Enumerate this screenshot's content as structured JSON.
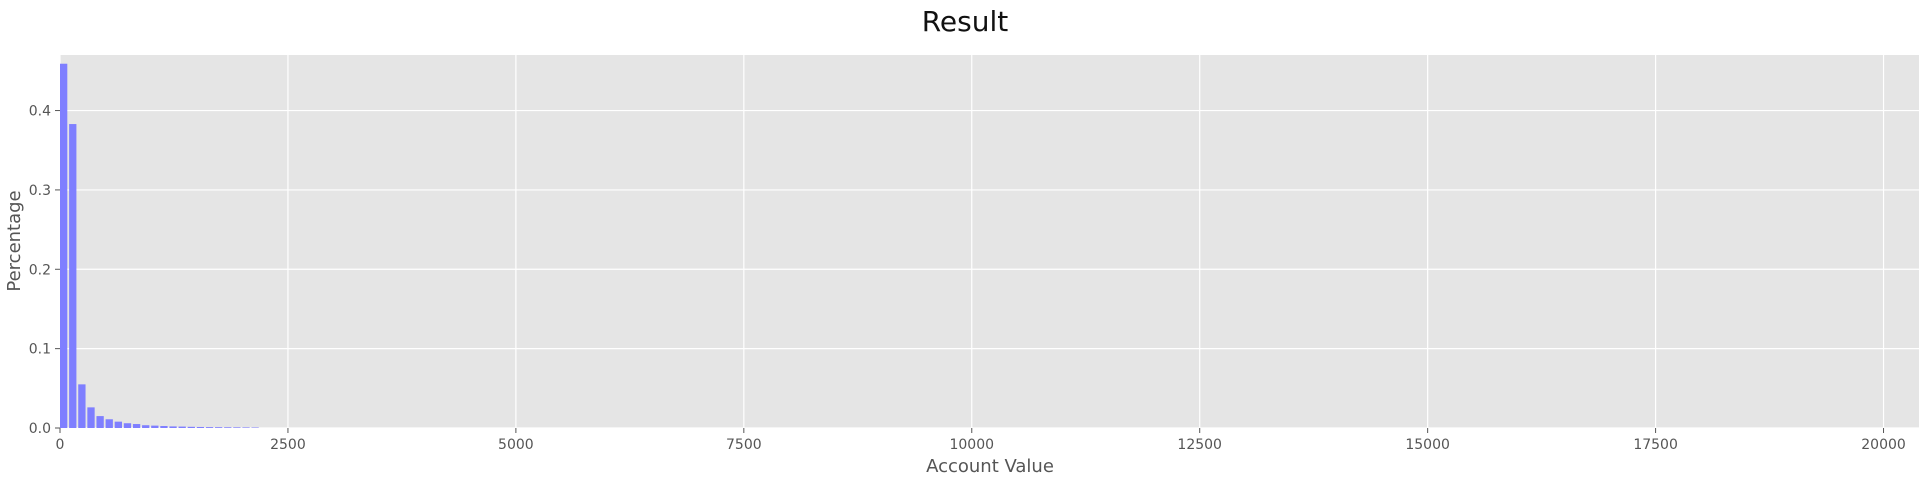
{
  "chart_data": {
    "type": "bar",
    "title": "Result",
    "xlabel": "Account Value",
    "ylabel": "Percentage",
    "xlim": [
      0,
      20400
    ],
    "ylim": [
      0,
      0.47
    ],
    "grid": true,
    "bar_width": 80,
    "x_ticks": [
      {
        "value": 0,
        "label": "0"
      },
      {
        "value": 2500,
        "label": "2500"
      },
      {
        "value": 5000,
        "label": "5000"
      },
      {
        "value": 7500,
        "label": "7500"
      },
      {
        "value": 10000,
        "label": "10000"
      },
      {
        "value": 12500,
        "label": "12500"
      },
      {
        "value": 15000,
        "label": "15000"
      },
      {
        "value": 17500,
        "label": "17500"
      },
      {
        "value": 20000,
        "label": "20000"
      }
    ],
    "y_ticks": [
      {
        "value": 0.0,
        "label": "0.0"
      },
      {
        "value": 0.1,
        "label": "0.1"
      },
      {
        "value": 0.2,
        "label": "0.2"
      },
      {
        "value": 0.3,
        "label": "0.3"
      },
      {
        "value": 0.4,
        "label": "0.4"
      }
    ],
    "x": [
      0,
      100,
      200,
      300,
      400,
      500,
      600,
      700,
      800,
      900,
      1000,
      1100,
      1200,
      1300,
      1400,
      1500,
      1600,
      1700,
      1800,
      1900,
      2000,
      2100
    ],
    "values": [
      0.459,
      0.383,
      0.055,
      0.026,
      0.015,
      0.011,
      0.008,
      0.006,
      0.005,
      0.0035,
      0.003,
      0.0025,
      0.002,
      0.0018,
      0.0015,
      0.0013,
      0.0011,
      0.001,
      0.0009,
      0.0008,
      0.0007,
      0.0006
    ],
    "colors": {
      "bar": "#7f7fff",
      "plot_background": "#e5e5e5",
      "grid": "#ffffff",
      "tick_text": "#555555",
      "title_text": "#111111"
    }
  }
}
